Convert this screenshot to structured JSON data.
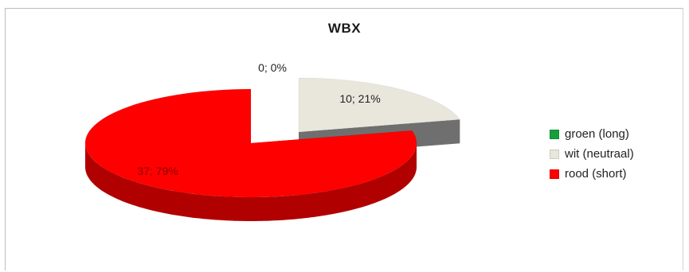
{
  "chart_data": {
    "type": "pie",
    "style": "3d-exploded",
    "title": "WBX",
    "categories": [
      "groen (long)",
      "wit (neutraal)",
      "rood (short)"
    ],
    "values": [
      0,
      10,
      37
    ],
    "percentages": [
      0,
      21,
      79
    ],
    "data_labels": [
      "0; 0%",
      "10; 21%",
      "37; 79%"
    ],
    "colors": [
      "#169e3c",
      "#e9e6dc",
      "#ff0000"
    ],
    "side_colors": [
      "#0b6e26",
      "#6f6f6f",
      "#b10000"
    ],
    "legend_position": "right"
  }
}
